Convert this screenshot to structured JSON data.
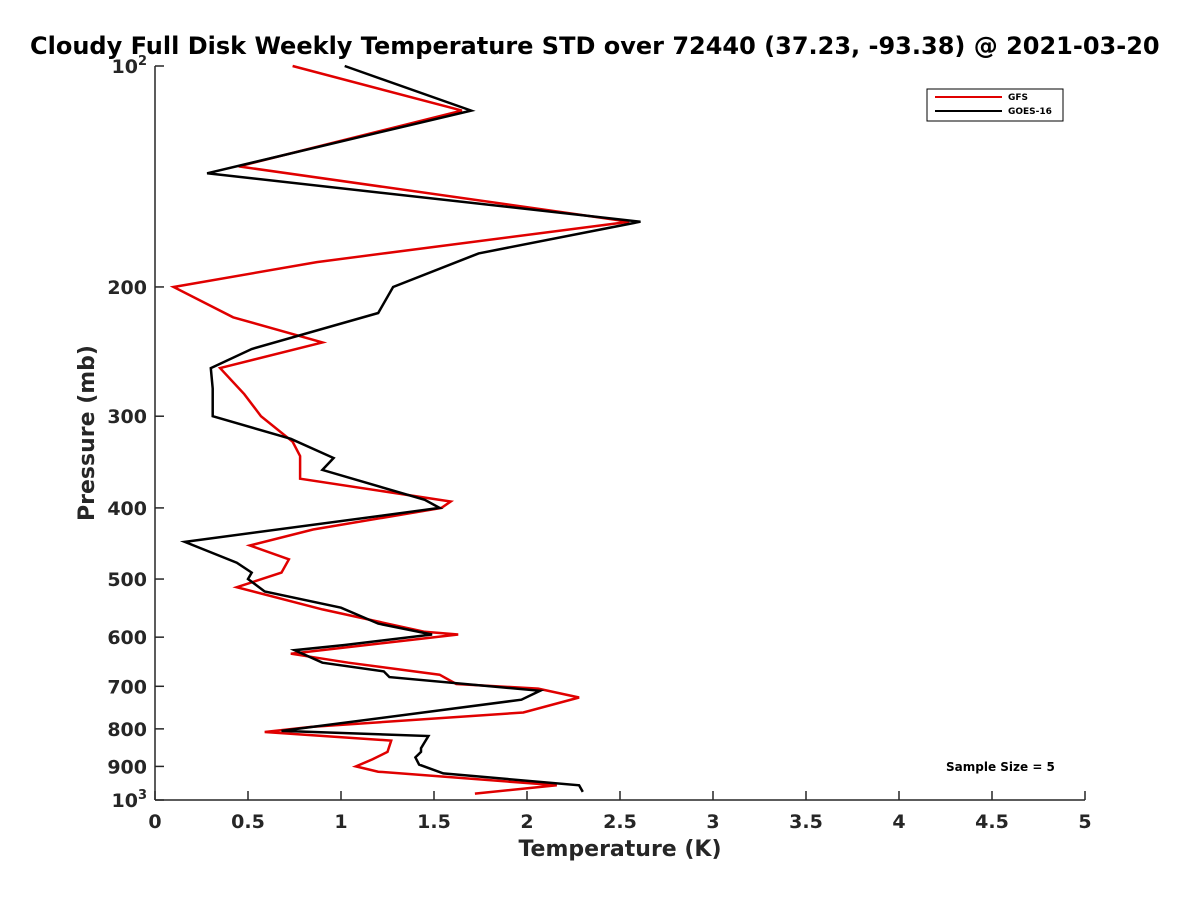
{
  "chart_data": {
    "type": "line",
    "title": "Cloudy Full Disk Weekly Temperature STD over 72440 (37.23, -93.38) @ 2021-03-20",
    "xlabel": "Temperature (K)",
    "ylabel": "Pressure (mb)",
    "xlim": [
      0,
      5
    ],
    "ylim": [
      100,
      1000
    ],
    "y_scale": "log",
    "y_reversed": true,
    "grid": false,
    "legend_position": "top-right",
    "x_ticks": [
      "0",
      "0.5",
      "1",
      "1.5",
      "2",
      "2.5",
      "3",
      "3.5",
      "4",
      "4.5",
      "5"
    ],
    "y_ticks": [
      {
        "value": 100,
        "label": "10",
        "sup": "2"
      },
      {
        "value": 200,
        "label": "200",
        "sup": ""
      },
      {
        "value": 300,
        "label": "300",
        "sup": ""
      },
      {
        "value": 400,
        "label": "400",
        "sup": ""
      },
      {
        "value": 500,
        "label": "500",
        "sup": ""
      },
      {
        "value": 600,
        "label": "600",
        "sup": ""
      },
      {
        "value": 700,
        "label": "700",
        "sup": ""
      },
      {
        "value": 800,
        "label": "800",
        "sup": ""
      },
      {
        "value": 900,
        "label": "900",
        "sup": ""
      },
      {
        "value": 1000,
        "label": "10",
        "sup": "3"
      }
    ],
    "annotation": "Sample Size = 5",
    "series": [
      {
        "name": "GFS",
        "color": "#e00000",
        "points": [
          [
            0.74,
            100
          ],
          [
            1.65,
            115
          ],
          [
            0.45,
            137
          ],
          [
            2.55,
            163
          ],
          [
            0.87,
            185
          ],
          [
            0.1,
            200
          ],
          [
            0.42,
            220
          ],
          [
            0.9,
            238
          ],
          [
            0.35,
            258
          ],
          [
            0.48,
            280
          ],
          [
            0.57,
            300
          ],
          [
            0.74,
            325
          ],
          [
            0.78,
            340
          ],
          [
            0.78,
            365
          ],
          [
            1.59,
            392
          ],
          [
            1.54,
            400
          ],
          [
            0.85,
            428
          ],
          [
            0.51,
            450
          ],
          [
            0.72,
            470
          ],
          [
            0.68,
            490
          ],
          [
            0.44,
            513
          ],
          [
            0.9,
            550
          ],
          [
            1.45,
            590
          ],
          [
            1.63,
            595
          ],
          [
            0.73,
            632
          ],
          [
            1.04,
            650
          ],
          [
            1.53,
            675
          ],
          [
            1.62,
            695
          ],
          [
            2.06,
            705
          ],
          [
            2.28,
            725
          ],
          [
            1.98,
            760
          ],
          [
            0.84,
            795
          ],
          [
            0.59,
            808
          ],
          [
            1.27,
            830
          ],
          [
            1.25,
            860
          ],
          [
            1.17,
            880
          ],
          [
            1.08,
            900
          ],
          [
            1.2,
            915
          ],
          [
            2.16,
            955
          ],
          [
            1.72,
            980
          ]
        ]
      },
      {
        "name": "GOES-16",
        "color": "#000000",
        "points": [
          [
            1.02,
            100
          ],
          [
            1.7,
            115
          ],
          [
            0.28,
            140
          ],
          [
            2.61,
            163
          ],
          [
            1.74,
            180
          ],
          [
            1.28,
            200
          ],
          [
            1.2,
            217
          ],
          [
            0.52,
            243
          ],
          [
            0.3,
            258
          ],
          [
            0.31,
            275
          ],
          [
            0.31,
            300
          ],
          [
            0.73,
            322
          ],
          [
            0.96,
            342
          ],
          [
            0.9,
            355
          ],
          [
            1.45,
            390
          ],
          [
            1.53,
            400
          ],
          [
            0.16,
            445
          ],
          [
            0.44,
            475
          ],
          [
            0.52,
            490
          ],
          [
            0.5,
            500
          ],
          [
            0.59,
            520
          ],
          [
            1.0,
            547
          ],
          [
            1.2,
            575
          ],
          [
            1.49,
            595
          ],
          [
            1.02,
            615
          ],
          [
            0.75,
            625
          ],
          [
            0.9,
            650
          ],
          [
            1.23,
            668
          ],
          [
            1.26,
            680
          ],
          [
            2.07,
            710
          ],
          [
            1.97,
            730
          ],
          [
            0.68,
            805
          ],
          [
            1.47,
            818
          ],
          [
            1.43,
            850
          ],
          [
            1.43,
            860
          ],
          [
            1.4,
            875
          ],
          [
            1.42,
            895
          ],
          [
            1.55,
            920
          ],
          [
            2.28,
            955
          ],
          [
            2.3,
            975
          ]
        ]
      }
    ]
  }
}
